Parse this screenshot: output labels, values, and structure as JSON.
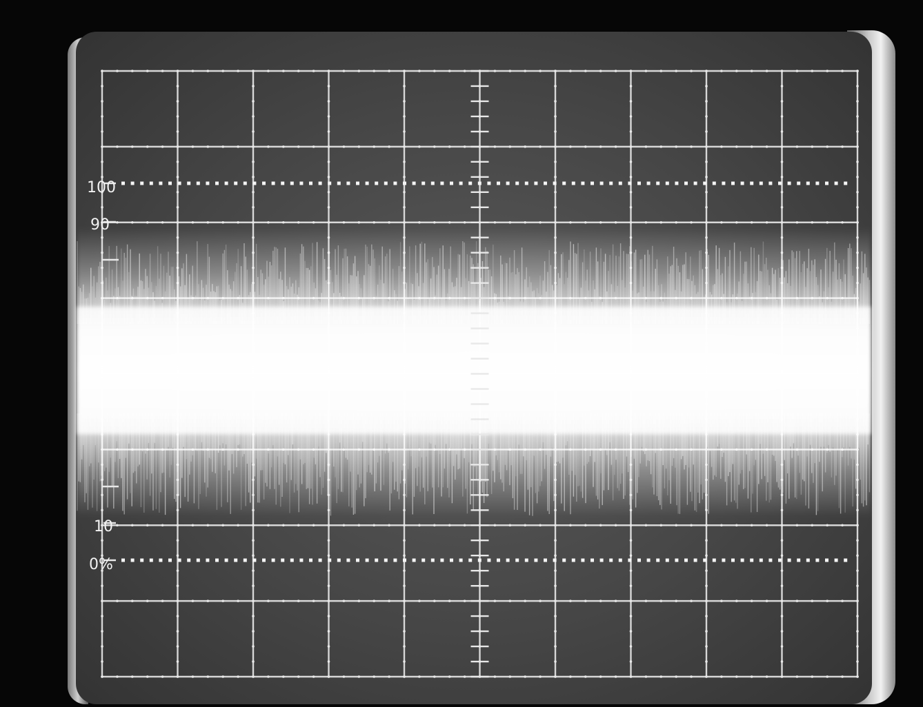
{
  "scale_labels": {
    "top": "100",
    "upper": "90",
    "lower": "10",
    "bottom": "0%"
  },
  "colors": {
    "graticule": "#e8e8e8",
    "trace": "#ffffff",
    "screen": "#4a4a4a",
    "bezel": "#d9d9d9"
  }
}
